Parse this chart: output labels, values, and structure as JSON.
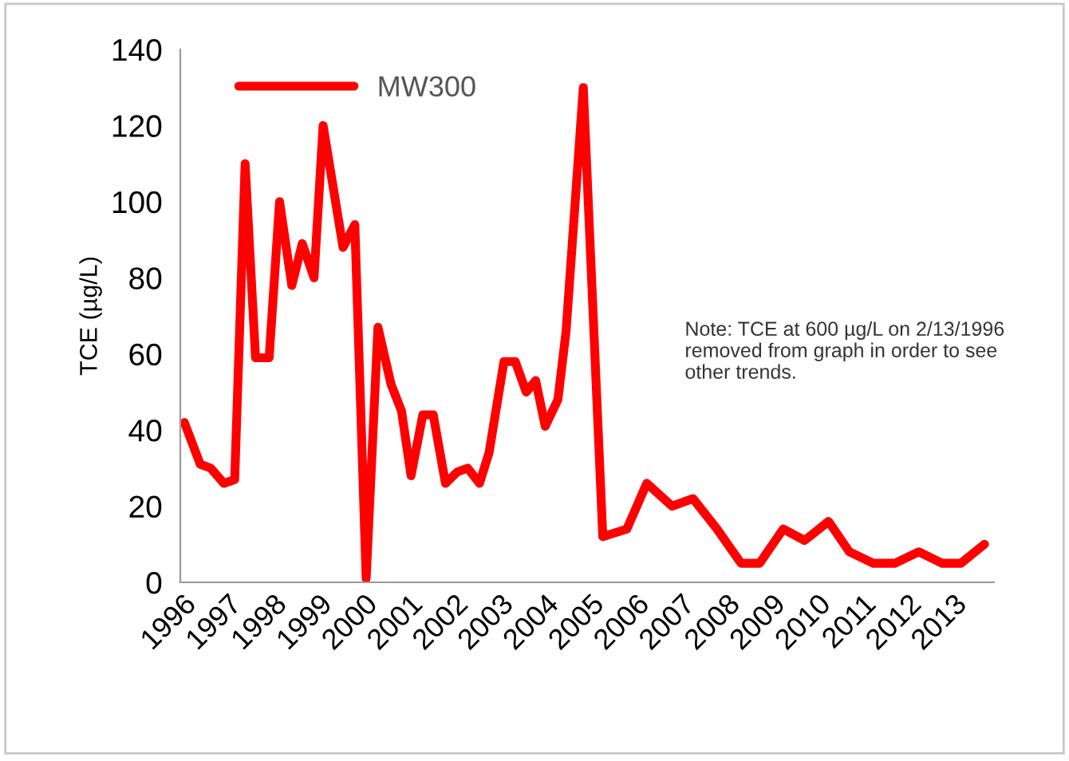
{
  "chart_data": {
    "type": "line",
    "ylabel": "TCE (µg/L)",
    "series": [
      {
        "name": "MW300",
        "color": "#ff0000",
        "x": [
          1996.04,
          1996.39,
          1996.62,
          1996.91,
          1997.15,
          1997.38,
          1997.61,
          1997.91,
          1998.14,
          1998.41,
          1998.64,
          1998.9,
          1999.1,
          1999.54,
          1999.8,
          2000.05,
          2000.31,
          2000.6,
          2000.83,
          2001.04,
          2001.3,
          2001.53,
          2001.8,
          2002.06,
          2002.29,
          2002.55,
          2002.76,
          2003.09,
          2003.34,
          2003.58,
          2003.79,
          2004.0,
          2004.28,
          2004.46,
          2004.84,
          2005.27,
          2005.8,
          2006.24,
          2006.8,
          2007.26,
          2007.79,
          2008.32,
          2008.73,
          2009.25,
          2009.72,
          2010.25,
          2010.71,
          2011.24,
          2011.71,
          2012.24,
          2012.76,
          2013.17,
          2013.69
        ],
        "values": [
          42,
          31,
          30,
          26,
          27,
          110,
          59,
          59,
          100,
          78,
          89,
          80,
          120,
          88,
          94,
          1,
          67,
          52,
          45,
          28,
          44,
          44,
          26,
          29,
          30,
          26,
          34,
          58,
          58,
          50,
          53,
          41,
          48,
          66,
          130,
          12,
          14,
          26,
          20,
          22,
          14,
          5,
          5,
          14,
          11,
          16,
          8,
          5,
          5,
          8,
          5,
          5,
          10
        ]
      }
    ],
    "xlim": [
      1995.95,
      2013.9
    ],
    "xticks": [
      1996,
      1997,
      1998,
      1999,
      2000,
      2001,
      2002,
      2003,
      2004,
      2005,
      2006,
      2007,
      2008,
      2009,
      2010,
      2011,
      2012,
      2013
    ],
    "ylim": [
      0,
      140
    ],
    "yticks": [
      0,
      20,
      40,
      60,
      80,
      100,
      120,
      140
    ],
    "grid": false,
    "legend": "top left",
    "marker": "none",
    "line_style": "solid",
    "annotations": [
      "Note: TCE at 600 µg/L on 2/13/1996 removed from graph in order to see other trends."
    ]
  }
}
